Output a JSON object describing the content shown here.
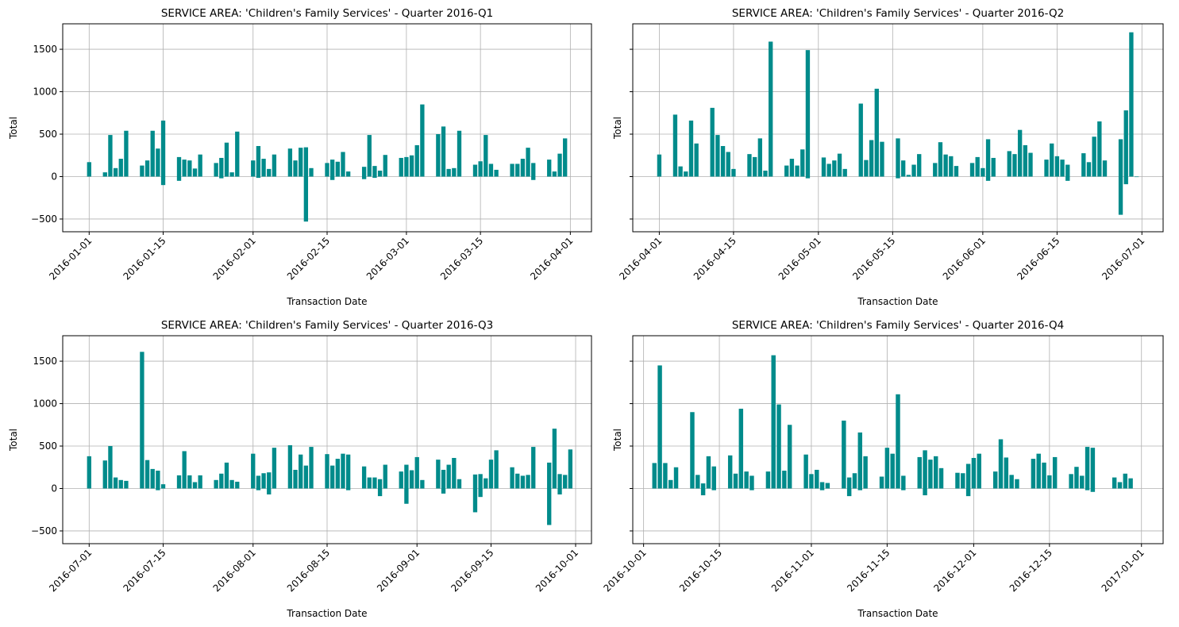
{
  "colors": {
    "bar": "#008b8b",
    "grid": "#b0b0b0",
    "axis": "#000000"
  },
  "chart_data": [
    {
      "type": "bar",
      "title": "SERVICE AREA: 'Children's Family Services' - Quarter 2016-Q1",
      "xlabel": "Transaction Date",
      "ylabel": "Total",
      "xlim": [
        "2015-12-27",
        "2016-04-05"
      ],
      "ylim": [
        -650,
        1800
      ],
      "grid": true,
      "x_ticks": [
        "2016-01-01",
        "2016-01-15",
        "2016-02-01",
        "2016-02-15",
        "2016-03-01",
        "2016-03-15",
        "2016-04-01"
      ],
      "y_ticks": [
        -500,
        0,
        500,
        1000,
        1500
      ],
      "series": [
        {
          "x": [
            "2016-01-01",
            "2016-01-04",
            "2016-01-05",
            "2016-01-06",
            "2016-01-07",
            "2016-01-08",
            "2016-01-11",
            "2016-01-12",
            "2016-01-13",
            "2016-01-14",
            "2016-01-15",
            "2016-01-18",
            "2016-01-19",
            "2016-01-20",
            "2016-01-21",
            "2016-01-22",
            "2016-01-25",
            "2016-01-26",
            "2016-01-27",
            "2016-01-28",
            "2016-01-29",
            "2016-02-01",
            "2016-02-02",
            "2016-02-03",
            "2016-02-04",
            "2016-02-05",
            "2016-02-08",
            "2016-02-09",
            "2016-02-10",
            "2016-02-11",
            "2016-02-12",
            "2016-02-15",
            "2016-02-16",
            "2016-02-17",
            "2016-02-18",
            "2016-02-19",
            "2016-02-22",
            "2016-02-23",
            "2016-02-24",
            "2016-02-25",
            "2016-02-26",
            "2016-02-29",
            "2016-03-01",
            "2016-03-02",
            "2016-03-03",
            "2016-03-04",
            "2016-03-07",
            "2016-03-08",
            "2016-03-09",
            "2016-03-10",
            "2016-03-11",
            "2016-03-14",
            "2016-03-15",
            "2016-03-16",
            "2016-03-17",
            "2016-03-18",
            "2016-03-21",
            "2016-03-22",
            "2016-03-23",
            "2016-03-24",
            "2016-03-25",
            "2016-03-28",
            "2016-03-29",
            "2016-03-30",
            "2016-03-31"
          ],
          "values": [
            170,
            50,
            490,
            100,
            210,
            540,
            130,
            190,
            540,
            330,
            660,
            230,
            200,
            190,
            95,
            260,
            160,
            220,
            400,
            50,
            530,
            190,
            360,
            210,
            90,
            260,
            330,
            190,
            340,
            345,
            100,
            160,
            200,
            175,
            290,
            60,
            115,
            490,
            125,
            70,
            255,
            220,
            230,
            250,
            370,
            850,
            500,
            590,
            90,
            100,
            540,
            140,
            180,
            490,
            150,
            80,
            150,
            150,
            210,
            340,
            160,
            200,
            60,
            270,
            450
          ]
        },
        {
          "x": [
            "2016-01-15",
            "2016-01-18",
            "2016-01-26",
            "2016-02-02",
            "2016-02-11",
            "2016-02-16",
            "2016-02-22",
            "2016-02-24",
            "2016-03-25"
          ],
          "values": [
            -100,
            -50,
            -20,
            -15,
            -530,
            -40,
            -30,
            -15,
            -40
          ]
        }
      ]
    },
    {
      "type": "bar",
      "title": "SERVICE AREA: 'Children's Family Services' - Quarter 2016-Q2",
      "xlabel": "Transaction Date",
      "ylabel": "Total",
      "xlim": [
        "2016-03-27",
        "2016-07-05"
      ],
      "ylim": [
        -650,
        1800
      ],
      "grid": true,
      "x_ticks": [
        "2016-04-01",
        "2016-04-15",
        "2016-05-01",
        "2016-05-15",
        "2016-06-01",
        "2016-06-15",
        "2016-07-01"
      ],
      "y_ticks": [
        -500,
        0,
        500,
        1000,
        1500
      ],
      "series": [
        {
          "x": [
            "2016-04-01",
            "2016-04-04",
            "2016-04-05",
            "2016-04-06",
            "2016-04-07",
            "2016-04-08",
            "2016-04-11",
            "2016-04-12",
            "2016-04-13",
            "2016-04-14",
            "2016-04-15",
            "2016-04-18",
            "2016-04-19",
            "2016-04-20",
            "2016-04-21",
            "2016-04-22",
            "2016-04-25",
            "2016-04-26",
            "2016-04-27",
            "2016-04-28",
            "2016-04-29",
            "2016-05-02",
            "2016-05-03",
            "2016-05-04",
            "2016-05-05",
            "2016-05-06",
            "2016-05-09",
            "2016-05-10",
            "2016-05-11",
            "2016-05-12",
            "2016-05-13",
            "2016-05-16",
            "2016-05-17",
            "2016-05-18",
            "2016-05-19",
            "2016-05-20",
            "2016-05-23",
            "2016-05-24",
            "2016-05-25",
            "2016-05-26",
            "2016-05-27",
            "2016-05-30",
            "2016-05-31",
            "2016-06-01",
            "2016-06-02",
            "2016-06-03",
            "2016-06-06",
            "2016-06-07",
            "2016-06-08",
            "2016-06-09",
            "2016-06-10",
            "2016-06-13",
            "2016-06-14",
            "2016-06-15",
            "2016-06-16",
            "2016-06-17",
            "2016-06-20",
            "2016-06-21",
            "2016-06-22",
            "2016-06-23",
            "2016-06-24",
            "2016-06-27",
            "2016-06-28",
            "2016-06-29",
            "2016-06-30"
          ],
          "values": [
            260,
            730,
            120,
            60,
            660,
            390,
            810,
            490,
            360,
            290,
            90,
            265,
            230,
            450,
            70,
            1590,
            130,
            210,
            130,
            320,
            1490,
            225,
            150,
            190,
            270,
            90,
            860,
            195,
            430,
            1035,
            410,
            450,
            190,
            20,
            140,
            265,
            160,
            405,
            260,
            240,
            125,
            160,
            230,
            100,
            440,
            220,
            300,
            265,
            550,
            370,
            280,
            200,
            390,
            240,
            200,
            140,
            275,
            170,
            470,
            650,
            190,
            440,
            780,
            1700,
            0
          ]
        },
        {
          "x": [
            "2016-04-29",
            "2016-05-16",
            "2016-06-02",
            "2016-06-17",
            "2016-06-27",
            "2016-06-28"
          ],
          "values": [
            -20,
            -20,
            -50,
            -50,
            -450,
            -90
          ]
        }
      ]
    },
    {
      "type": "bar",
      "title": "SERVICE AREA: 'Children's Family Services' - Quarter 2016-Q3",
      "xlabel": "Transaction Date",
      "ylabel": "Total",
      "xlim": [
        "2016-06-26",
        "2016-10-04"
      ],
      "ylim": [
        -650,
        1800
      ],
      "grid": true,
      "x_ticks": [
        "2016-07-01",
        "2016-07-15",
        "2016-08-01",
        "2016-08-15",
        "2016-09-01",
        "2016-09-15",
        "2016-10-01"
      ],
      "y_ticks": [
        -500,
        0,
        500,
        1000,
        1500
      ],
      "series": [
        {
          "x": [
            "2016-07-01",
            "2016-07-04",
            "2016-07-05",
            "2016-07-06",
            "2016-07-07",
            "2016-07-08",
            "2016-07-11",
            "2016-07-12",
            "2016-07-13",
            "2016-07-14",
            "2016-07-15",
            "2016-07-18",
            "2016-07-19",
            "2016-07-20",
            "2016-07-21",
            "2016-07-22",
            "2016-07-25",
            "2016-07-26",
            "2016-07-27",
            "2016-07-28",
            "2016-07-29",
            "2016-08-01",
            "2016-08-02",
            "2016-08-03",
            "2016-08-04",
            "2016-08-05",
            "2016-08-08",
            "2016-08-09",
            "2016-08-10",
            "2016-08-11",
            "2016-08-12",
            "2016-08-15",
            "2016-08-16",
            "2016-08-17",
            "2016-08-18",
            "2016-08-19",
            "2016-08-22",
            "2016-08-23",
            "2016-08-24",
            "2016-08-25",
            "2016-08-26",
            "2016-08-29",
            "2016-08-30",
            "2016-08-31",
            "2016-09-01",
            "2016-09-02",
            "2016-09-05",
            "2016-09-06",
            "2016-09-07",
            "2016-09-08",
            "2016-09-09",
            "2016-09-12",
            "2016-09-13",
            "2016-09-14",
            "2016-09-15",
            "2016-09-16",
            "2016-09-19",
            "2016-09-20",
            "2016-09-21",
            "2016-09-22",
            "2016-09-23",
            "2016-09-26",
            "2016-09-27",
            "2016-09-28",
            "2016-09-29",
            "2016-09-30"
          ],
          "values": [
            380,
            330,
            500,
            130,
            100,
            90,
            1610,
            335,
            230,
            210,
            50,
            155,
            440,
            155,
            75,
            155,
            100,
            175,
            305,
            100,
            80,
            410,
            150,
            180,
            190,
            480,
            510,
            220,
            400,
            270,
            490,
            405,
            270,
            350,
            410,
            400,
            260,
            130,
            130,
            110,
            280,
            200,
            280,
            215,
            370,
            100,
            340,
            220,
            280,
            360,
            110,
            165,
            170,
            120,
            340,
            450,
            250,
            175,
            150,
            160,
            490,
            305,
            705,
            170,
            160,
            460
          ]
        },
        {
          "x": [
            "2016-07-14",
            "2016-08-02",
            "2016-08-04",
            "2016-08-19",
            "2016-08-25",
            "2016-08-30",
            "2016-09-06",
            "2016-09-12",
            "2016-09-13",
            "2016-09-26",
            "2016-09-28"
          ],
          "values": [
            -20,
            -20,
            -70,
            -20,
            -90,
            -180,
            -60,
            -280,
            -100,
            -430,
            -70
          ]
        }
      ]
    },
    {
      "type": "bar",
      "title": "SERVICE AREA: 'Children's Family Services' - Quarter 2016-Q4",
      "xlabel": "Transaction Date",
      "ylabel": "Total",
      "xlim": [
        "2016-09-29",
        "2017-01-05"
      ],
      "ylim": [
        -650,
        1800
      ],
      "grid": true,
      "x_ticks": [
        "2016-10-01",
        "2016-10-15",
        "2016-11-01",
        "2016-11-15",
        "2016-12-01",
        "2016-12-15",
        "2017-01-01"
      ],
      "y_ticks": [
        -500,
        0,
        500,
        1000,
        1500
      ],
      "series": [
        {
          "x": [
            "2016-10-03",
            "2016-10-04",
            "2016-10-05",
            "2016-10-06",
            "2016-10-07",
            "2016-10-10",
            "2016-10-11",
            "2016-10-12",
            "2016-10-13",
            "2016-10-14",
            "2016-10-17",
            "2016-10-18",
            "2016-10-19",
            "2016-10-20",
            "2016-10-21",
            "2016-10-24",
            "2016-10-25",
            "2016-10-26",
            "2016-10-27",
            "2016-10-28",
            "2016-10-31",
            "2016-11-01",
            "2016-11-02",
            "2016-11-03",
            "2016-11-04",
            "2016-11-07",
            "2016-11-08",
            "2016-11-09",
            "2016-11-10",
            "2016-11-11",
            "2016-11-14",
            "2016-11-15",
            "2016-11-16",
            "2016-11-17",
            "2016-11-18",
            "2016-11-21",
            "2016-11-22",
            "2016-11-23",
            "2016-11-24",
            "2016-11-25",
            "2016-11-28",
            "2016-11-29",
            "2016-11-30",
            "2016-12-01",
            "2016-12-02",
            "2016-12-05",
            "2016-12-06",
            "2016-12-07",
            "2016-12-08",
            "2016-12-09",
            "2016-12-12",
            "2016-12-13",
            "2016-12-14",
            "2016-12-15",
            "2016-12-16",
            "2016-12-19",
            "2016-12-20",
            "2016-12-21",
            "2016-12-22",
            "2016-12-23",
            "2016-12-27",
            "2016-12-28",
            "2016-12-29",
            "2016-12-30"
          ],
          "values": [
            300,
            1450,
            300,
            100,
            250,
            900,
            160,
            60,
            380,
            260,
            390,
            175,
            940,
            200,
            150,
            200,
            1570,
            990,
            210,
            750,
            400,
            170,
            220,
            75,
            65,
            800,
            130,
            180,
            660,
            380,
            140,
            480,
            410,
            1110,
            150,
            370,
            450,
            340,
            380,
            240,
            185,
            180,
            290,
            360,
            410,
            200,
            580,
            365,
            160,
            110,
            350,
            410,
            305,
            155,
            370,
            170,
            255,
            150,
            490,
            480,
            130,
            75,
            175,
            120
          ]
        },
        {
          "x": [
            "2016-10-12",
            "2016-10-14",
            "2016-10-21",
            "2016-11-03",
            "2016-11-08",
            "2016-11-10",
            "2016-11-18",
            "2016-11-22",
            "2016-11-30",
            "2016-12-22",
            "2016-12-23"
          ],
          "values": [
            -80,
            -20,
            -20,
            -20,
            -90,
            -20,
            -20,
            -80,
            -90,
            -20,
            -40
          ]
        }
      ]
    }
  ]
}
